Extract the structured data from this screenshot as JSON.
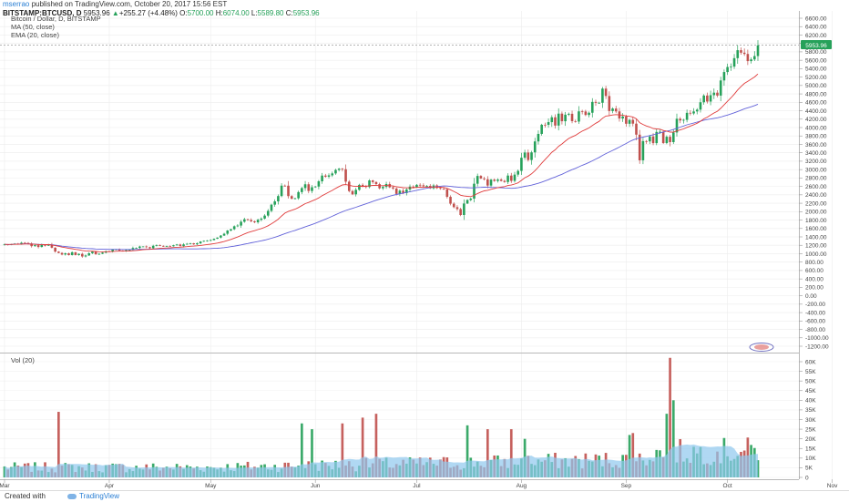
{
  "header": {
    "author": "mserrao",
    "published_text": " published on TradingView.com, October 20, 2017 15:56 EST",
    "symbol": "BITSTAMP:BTCUSD, D",
    "last": "5953.96",
    "change": "+255.27 (+4.48%)",
    "o_label": "O:",
    "o_value": "5700.00",
    "h_label": "H:",
    "h_value": "6074.00",
    "l_label": "L:",
    "l_value": "5589.80",
    "c_label": "C:",
    "c_value": "5953.96"
  },
  "legend": {
    "title": "Bitcoin / Dollar, D, BITSTAMP",
    "ma": "MA (50, close)",
    "ema": "EMA (20, close)",
    "vol": "Vol (20)"
  },
  "badge": "5953.96",
  "footer": {
    "created": "Created with",
    "brand": "TradingView"
  },
  "colors": {
    "up": "#26a15a",
    "down": "#c0504d",
    "ma": "#6262d9",
    "ema": "#e03c3c",
    "volma": "#8ec8ee",
    "badge": "#26a15a",
    "blue": "#2a7fd4"
  },
  "chart_data": {
    "type": "candlestick",
    "title": "Bitcoin / Dollar, D, BITSTAMP",
    "x_tick_labels": [
      "Mar",
      "Apr",
      "May",
      "Jun",
      "Jul",
      "Aug",
      "Sep",
      "Oct",
      "Nov"
    ],
    "price_axis_labels": [
      "6600.00",
      "6400.00",
      "6200.00",
      "6000.00",
      "5800.00",
      "5600.00",
      "5400.00",
      "5200.00",
      "5000.00",
      "4800.00",
      "4600.00",
      "4400.00",
      "4200.00",
      "4000.00",
      "3800.00",
      "3600.00",
      "3400.00",
      "3200.00",
      "3000.00",
      "2800.00",
      "2600.00",
      "2400.00",
      "2200.00",
      "2000.00",
      "1800.00",
      "1600.00",
      "1400.00",
      "1200.00",
      "1000.00",
      "800.00",
      "600.00",
      "400.00",
      "200.00",
      "0.00",
      "-200.00",
      "-400.00",
      "-600.00",
      "-800.00",
      "-1000.00",
      "-1200.00"
    ],
    "price_range": [
      -1300,
      6700
    ],
    "volume_axis_labels": [
      "60K",
      "55K",
      "50K",
      "45K",
      "40K",
      "35K",
      "30K",
      "25K",
      "20K",
      "15K",
      "10K",
      "5K",
      "0"
    ],
    "volume_range": [
      0,
      63000
    ],
    "series": [
      {
        "name": "BTCUSD",
        "kind": "candles",
        "close": [
          1222,
          1212,
          1226,
          1240,
          1232,
          1260,
          1255,
          1243,
          1180,
          1203,
          1160,
          1212,
          1190,
          1215,
          1142,
          1050,
          1018,
          980,
          1010,
          967,
          1034,
          968,
          996,
          934,
          958,
          1011,
          1050,
          986,
          997,
          1024,
          1058,
          1051,
          1097,
          1108,
          1074,
          1060,
          1086,
          1093,
          1135,
          1138,
          1171,
          1172,
          1156,
          1130,
          1187,
          1200,
          1186,
          1178,
          1183,
          1177,
          1200,
          1219,
          1182,
          1221,
          1235,
          1248,
          1223,
          1247,
          1289,
          1305,
          1315,
          1324,
          1355,
          1383,
          1431,
          1474,
          1551,
          1582,
          1652,
          1669,
          1760,
          1819,
          1801,
          1770,
          1747,
          1807,
          1835,
          1906,
          2018,
          2166,
          2244,
          2371,
          2618,
          2617,
          2370,
          2306,
          2318,
          2465,
          2561,
          2651,
          2491,
          2580,
          2597,
          2722,
          2858,
          2831,
          2863,
          2909,
          2991,
          3021,
          3009,
          2713,
          2490,
          2412,
          2519,
          2637,
          2611,
          2586,
          2743,
          2704,
          2655,
          2555,
          2589,
          2657,
          2579,
          2550,
          2422,
          2499,
          2442,
          2527,
          2595,
          2578,
          2638,
          2628,
          2604,
          2612,
          2555,
          2624,
          2561,
          2546,
          2531,
          2352,
          2189,
          2107,
          2061,
          1920,
          2193,
          2278,
          2310,
          2664,
          2849,
          2789,
          2770,
          2620,
          2762,
          2731,
          2764,
          2732,
          2705,
          2858,
          2732,
          2881,
          2969,
          3282,
          3407,
          3228,
          3410,
          3670,
          3849,
          4066,
          4065,
          4129,
          4244,
          4047,
          4331,
          4150,
          4306,
          4327,
          4153,
          4142,
          4385,
          4382,
          4299,
          4352,
          4610,
          4589,
          4589,
          4926,
          4750,
          4393,
          4452,
          4384,
          4216,
          4263,
          4090,
          4182,
          4093,
          3831,
          3221,
          3678,
          3671,
          3788,
          3629,
          3896,
          3900,
          3631,
          3781,
          3654,
          3883,
          4209,
          4168,
          4183,
          4350,
          4335,
          4383,
          4426,
          4601,
          4762,
          4618,
          4770,
          4830,
          4760,
          5120,
          5320,
          5440,
          5450,
          5650,
          5840,
          5780,
          5750,
          5580,
          5620,
          5700,
          5954
        ]
      },
      {
        "name": "MA (50, close)",
        "kind": "line"
      },
      {
        "name": "EMA (20, close)",
        "kind": "line"
      },
      {
        "name": "Vol (20)",
        "kind": "volume"
      }
    ]
  }
}
